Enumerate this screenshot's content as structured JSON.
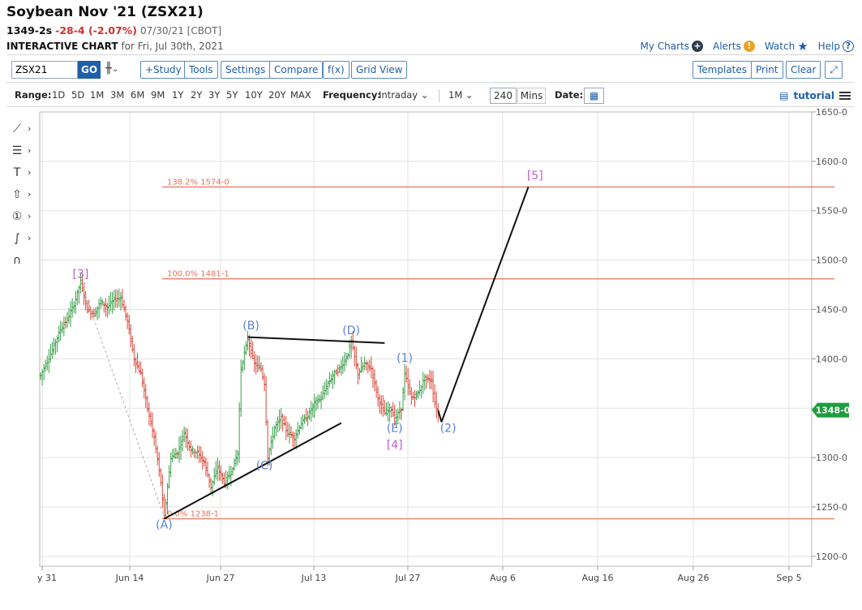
{
  "header": {
    "title": "Soybean Nov '21 (ZSX21)",
    "last": "1349-2s",
    "change": "-28-4 (-2.07%)",
    "date": "07/30/21 [CBOT]",
    "interactive_label": "INTERACTIVE CHART",
    "interactive_rest": "for Fri, Jul 30th, 2021"
  },
  "top_links": {
    "my_charts": "My Charts",
    "alerts": "Alerts",
    "watch": "Watch",
    "help": "Help"
  },
  "toolbar": {
    "symbol_value": "ZSX21",
    "go": "GO",
    "study": "+Study",
    "tools": "Tools",
    "settings": "Settings",
    "compare": "Compare",
    "fx": "f(x)",
    "grid_view": "Grid View",
    "templates": "Templates",
    "print": "Print",
    "clear": "Clear"
  },
  "rangebar": {
    "range_label": "Range:",
    "ranges": [
      "1D",
      "5D",
      "1M",
      "3M",
      "6M",
      "9M",
      "1Y",
      "2Y",
      "3Y",
      "5Y",
      "10Y",
      "20Y",
      "MAX"
    ],
    "frequency_label": "Frequency:",
    "frequency_value": "Intraday",
    "period_value": "1M",
    "interval_value": "240",
    "interval_unit": "Mins",
    "date_label": "Date:",
    "tutorial": "tutorial"
  },
  "colors": {
    "accent": "#1f5fa8",
    "down": "#d32f2f",
    "up_bar": "#3aa04a",
    "down_bar": "#d9483b",
    "fib_line": "#e9705c",
    "wave_blue": "#5a7fd6",
    "wave_purple": "#c05bd6",
    "last_badge": "#1e9e3e"
  },
  "chart_data": {
    "type": "ohlc",
    "x_ticks": [
      "y 31",
      "Jun 14",
      "Jun 27",
      "Jul 13",
      "Jul 27",
      "Aug 6",
      "Aug 16",
      "Aug 26",
      "Sep 5"
    ],
    "y_ticks": [
      "1650-0",
      "1600-0",
      "1550-0",
      "1500-0",
      "1450-0",
      "1400-0",
      "1350-0",
      "1300-0",
      "1250-0",
      "1200-0"
    ],
    "ylim": [
      1190,
      1650
    ],
    "last_price_label": "1348-0",
    "last_price": 1348,
    "price_path": [
      [
        0,
        1383
      ],
      [
        3,
        1405
      ],
      [
        6,
        1430
      ],
      [
        8,
        1440
      ],
      [
        10,
        1455
      ],
      [
        12,
        1478
      ],
      [
        14,
        1450
      ],
      [
        16,
        1445
      ],
      [
        18,
        1458
      ],
      [
        20,
        1452
      ],
      [
        22,
        1460
      ],
      [
        24,
        1462
      ],
      [
        26,
        1438
      ],
      [
        28,
        1400
      ],
      [
        30,
        1385
      ],
      [
        32,
        1350
      ],
      [
        34,
        1320
      ],
      [
        36,
        1275
      ],
      [
        37,
        1240
      ],
      [
        39,
        1300
      ],
      [
        41,
        1305
      ],
      [
        43,
        1325
      ],
      [
        45,
        1308
      ],
      [
        47,
        1305
      ],
      [
        49,
        1295
      ],
      [
        51,
        1270
      ],
      [
        53,
        1290
      ],
      [
        55,
        1275
      ],
      [
        57,
        1285
      ],
      [
        59,
        1305
      ],
      [
        60,
        1390
      ],
      [
        62,
        1420
      ],
      [
        64,
        1395
      ],
      [
        66,
        1390
      ],
      [
        67,
        1375
      ],
      [
        68,
        1300
      ],
      [
        70,
        1330
      ],
      [
        72,
        1340
      ],
      [
        74,
        1325
      ],
      [
        76,
        1320
      ],
      [
        78,
        1335
      ],
      [
        80,
        1342
      ],
      [
        82,
        1355
      ],
      [
        84,
        1360
      ],
      [
        86,
        1375
      ],
      [
        88,
        1385
      ],
      [
        90,
        1392
      ],
      [
        92,
        1405
      ],
      [
        93,
        1418
      ],
      [
        95,
        1385
      ],
      [
        97,
        1395
      ],
      [
        99,
        1390
      ],
      [
        101,
        1360
      ],
      [
        103,
        1345
      ],
      [
        105,
        1350
      ],
      [
        106,
        1338
      ],
      [
        108,
        1350
      ],
      [
        109,
        1385
      ],
      [
        111,
        1360
      ],
      [
        113,
        1365
      ],
      [
        115,
        1380
      ],
      [
        117,
        1378
      ],
      [
        118,
        1355
      ],
      [
        119,
        1345
      ]
    ],
    "fib_levels": [
      {
        "label": "138.2% 1574-0",
        "price": 1574
      },
      {
        "label": "100.0% 1481-1",
        "price": 1481
      },
      {
        "label": "0.0% 1238-1",
        "price": 1238
      }
    ],
    "wave_labels": [
      {
        "text": "[3]",
        "x": 12,
        "price": 1482,
        "color": "purple"
      },
      {
        "text": "(A)",
        "x": 37,
        "price": 1228,
        "color": "blue"
      },
      {
        "text": "(B)",
        "x": 63,
        "price": 1430,
        "color": "blue"
      },
      {
        "text": "(C)",
        "x": 67,
        "price": 1288,
        "color": "blue"
      },
      {
        "text": "(D)",
        "x": 93,
        "price": 1425,
        "color": "blue"
      },
      {
        "text": "(1)",
        "x": 109,
        "price": 1397,
        "color": "blue"
      },
      {
        "text": "(E)",
        "x": 106,
        "price": 1326,
        "color": "blue"
      },
      {
        "text": "[4]",
        "x": 106,
        "price": 1309,
        "color": "purple"
      },
      {
        "text": "(2)",
        "x": 122,
        "price": 1326,
        "color": "blue"
      },
      {
        "text": "[5]",
        "x": 148,
        "price": 1582,
        "color": "purple"
      }
    ],
    "trendlines": [
      {
        "from": [
          37,
          1238
        ],
        "to": [
          90,
          1335
        ]
      },
      {
        "from": [
          62,
          1422
        ],
        "to": [
          103,
          1416
        ]
      },
      {
        "from": [
          119,
          1348
        ],
        "to": [
          120,
          1336
        ]
      },
      {
        "from": [
          120,
          1336
        ],
        "to": [
          146,
          1574
        ]
      }
    ],
    "dashed_line": {
      "from": [
        12,
        1478
      ],
      "to": [
        37,
        1240
      ]
    }
  }
}
